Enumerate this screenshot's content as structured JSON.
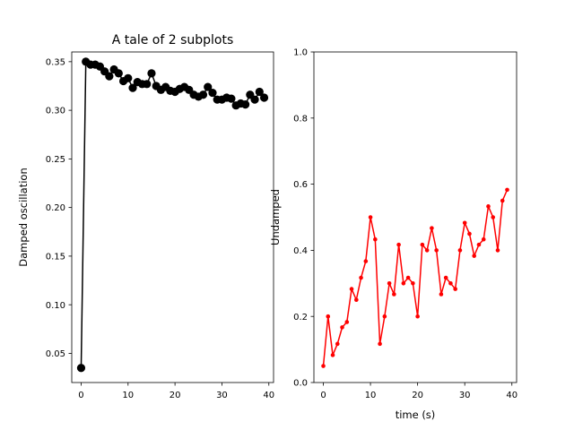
{
  "figure": {
    "background": "#ffffff"
  },
  "chart_data": [
    {
      "type": "line",
      "title": "A tale of 2 subplots",
      "xlabel": "",
      "ylabel": "Damped oscillation",
      "xlim": [
        -2,
        41
      ],
      "ylim": [
        0.02,
        0.36
      ],
      "xticks": [
        0,
        10,
        20,
        30,
        40
      ],
      "xtick_labels": [
        "0",
        "10",
        "20",
        "30",
        "40"
      ],
      "yticks": [
        0.05,
        0.1,
        0.15,
        0.2,
        0.25,
        0.3,
        0.35
      ],
      "ytick_labels": [
        "0.05",
        "0.10",
        "0.15",
        "0.20",
        "0.25",
        "0.30",
        "0.35"
      ],
      "grid": false,
      "series": [
        {
          "color": "#000000",
          "marker": "circle",
          "x": [
            0,
            1,
            2,
            3,
            4,
            5,
            6,
            7,
            8,
            9,
            10,
            11,
            12,
            13,
            14,
            15,
            16,
            17,
            18,
            19,
            20,
            21,
            22,
            23,
            24,
            25,
            26,
            27,
            28,
            29,
            30,
            31,
            32,
            33,
            34,
            35,
            36,
            37,
            38,
            39
          ],
          "y": [
            0.035,
            0.35,
            0.347,
            0.347,
            0.345,
            0.34,
            0.335,
            0.342,
            0.338,
            0.33,
            0.333,
            0.323,
            0.329,
            0.327,
            0.327,
            0.338,
            0.325,
            0.321,
            0.324,
            0.32,
            0.319,
            0.322,
            0.324,
            0.321,
            0.316,
            0.314,
            0.316,
            0.324,
            0.318,
            0.311,
            0.311,
            0.313,
            0.312,
            0.305,
            0.307,
            0.306,
            0.316,
            0.311,
            0.319,
            0.313
          ]
        }
      ]
    },
    {
      "type": "line",
      "title": "",
      "xlabel": "time (s)",
      "ylabel": "Undamped",
      "xlim": [
        -2,
        41
      ],
      "ylim": [
        0.0,
        1.0
      ],
      "xticks": [
        0,
        10,
        20,
        30,
        40
      ],
      "xtick_labels": [
        "0",
        "10",
        "20",
        "30",
        "40"
      ],
      "yticks": [
        0.0,
        0.2,
        0.4,
        0.6,
        0.8,
        1.0
      ],
      "ytick_labels": [
        "0.0",
        "0.2",
        "0.4",
        "0.6",
        "0.8",
        "1.0"
      ],
      "grid": false,
      "series": [
        {
          "color": "#ff0000",
          "marker": "dot",
          "x": [
            0,
            1,
            2,
            3,
            4,
            5,
            6,
            7,
            8,
            9,
            10,
            11,
            12,
            13,
            14,
            15,
            16,
            17,
            18,
            19,
            20,
            21,
            22,
            23,
            24,
            25,
            26,
            27,
            28,
            29,
            30,
            31,
            32,
            33,
            34,
            35,
            36,
            37,
            38,
            39
          ],
          "y": [
            0.05,
            0.2,
            0.083,
            0.117,
            0.167,
            0.183,
            0.283,
            0.25,
            0.317,
            0.367,
            0.5,
            0.433,
            0.117,
            0.2,
            0.3,
            0.267,
            0.417,
            0.3,
            0.317,
            0.3,
            0.2,
            0.417,
            0.4,
            0.467,
            0.4,
            0.267,
            0.317,
            0.3,
            0.283,
            0.4,
            0.483,
            0.45,
            0.383,
            0.417,
            0.433,
            0.533,
            0.5,
            0.4,
            0.55,
            0.583
          ]
        }
      ]
    }
  ]
}
